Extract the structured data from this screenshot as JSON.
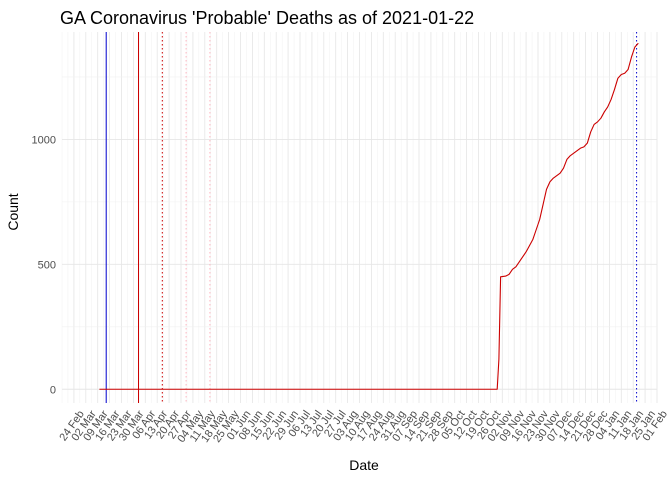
{
  "chart_data": {
    "type": "line",
    "title": "GA Coronavirus 'Probable' Deaths as of 2021-01-22",
    "xlabel": "Date",
    "ylabel": "Count",
    "xlim": [
      "2020-02-17",
      "2021-02-01"
    ],
    "ylim": [
      -55,
      1430
    ],
    "grid": true,
    "legend": "none",
    "y_ticks": [
      0,
      500,
      1000
    ],
    "x_ticks": [
      {
        "date": "2020-02-24",
        "label": "24 Feb"
      },
      {
        "date": "2020-03-02",
        "label": "02 Mar"
      },
      {
        "date": "2020-03-09",
        "label": "09 Mar"
      },
      {
        "date": "2020-03-16",
        "label": "16 Mar"
      },
      {
        "date": "2020-03-23",
        "label": "23 Mar"
      },
      {
        "date": "2020-03-30",
        "label": "30 Mar"
      },
      {
        "date": "2020-04-06",
        "label": "06 Apr"
      },
      {
        "date": "2020-04-13",
        "label": "13 Apr"
      },
      {
        "date": "2020-04-20",
        "label": "20 Apr"
      },
      {
        "date": "2020-04-27",
        "label": "27 Apr"
      },
      {
        "date": "2020-05-04",
        "label": "04 May"
      },
      {
        "date": "2020-05-11",
        "label": "11 May"
      },
      {
        "date": "2020-05-18",
        "label": "18 May"
      },
      {
        "date": "2020-05-25",
        "label": "25 May"
      },
      {
        "date": "2020-06-01",
        "label": "01 Jun"
      },
      {
        "date": "2020-06-08",
        "label": "08 Jun"
      },
      {
        "date": "2020-06-15",
        "label": "15 Jun"
      },
      {
        "date": "2020-06-22",
        "label": "22 Jun"
      },
      {
        "date": "2020-06-29",
        "label": "29 Jun"
      },
      {
        "date": "2020-07-06",
        "label": "06 Jul"
      },
      {
        "date": "2020-07-13",
        "label": "13 Jul"
      },
      {
        "date": "2020-07-20",
        "label": "20 Jul"
      },
      {
        "date": "2020-07-27",
        "label": "27 Jul"
      },
      {
        "date": "2020-08-03",
        "label": "03 Aug"
      },
      {
        "date": "2020-08-10",
        "label": "10 Aug"
      },
      {
        "date": "2020-08-17",
        "label": "17 Aug"
      },
      {
        "date": "2020-08-24",
        "label": "24 Aug"
      },
      {
        "date": "2020-08-31",
        "label": "31 Aug"
      },
      {
        "date": "2020-09-07",
        "label": "07 Sep"
      },
      {
        "date": "2020-09-14",
        "label": "14 Sep"
      },
      {
        "date": "2020-09-21",
        "label": "21 Sep"
      },
      {
        "date": "2020-09-28",
        "label": "28 Sep"
      },
      {
        "date": "2020-10-05",
        "label": "05 Oct"
      },
      {
        "date": "2020-10-12",
        "label": "12 Oct"
      },
      {
        "date": "2020-10-19",
        "label": "19 Oct"
      },
      {
        "date": "2020-10-26",
        "label": "26 Oct"
      },
      {
        "date": "2020-11-02",
        "label": "02 Nov"
      },
      {
        "date": "2020-11-09",
        "label": "09 Nov"
      },
      {
        "date": "2020-11-16",
        "label": "16 Nov"
      },
      {
        "date": "2020-11-23",
        "label": "23 Nov"
      },
      {
        "date": "2020-11-30",
        "label": "30 Nov"
      },
      {
        "date": "2020-12-07",
        "label": "07 Dec"
      },
      {
        "date": "2020-12-14",
        "label": "14 Dec"
      },
      {
        "date": "2020-12-21",
        "label": "21 Dec"
      },
      {
        "date": "2020-12-28",
        "label": "28 Dec"
      },
      {
        "date": "2021-01-04",
        "label": "04 Jan"
      },
      {
        "date": "2021-01-11",
        "label": "11 Jan"
      },
      {
        "date": "2021-01-18",
        "label": "18 Jan"
      },
      {
        "date": "2021-01-25",
        "label": "25 Jan"
      },
      {
        "date": "2021-02-01",
        "label": "01 Feb"
      }
    ],
    "vlines": [
      {
        "date": "2020-03-14",
        "color": "#0000cc",
        "style": "solid"
      },
      {
        "date": "2020-04-02",
        "color": "#cc0000",
        "style": "solid"
      },
      {
        "date": "2020-04-16",
        "color": "#cc0000",
        "style": "dotted"
      },
      {
        "date": "2020-04-30",
        "color": "#ffb6c1",
        "style": "dotted"
      },
      {
        "date": "2020-05-14",
        "color": "#ffb6c1",
        "style": "dotted"
      },
      {
        "date": "2021-01-20",
        "color": "#0000cc",
        "style": "dotted"
      }
    ],
    "series": [
      {
        "color": "#cc0000",
        "points": [
          [
            "2020-03-10",
            0
          ],
          [
            "2020-10-30",
            0
          ],
          [
            "2020-10-31",
            120
          ],
          [
            "2020-11-01",
            450
          ],
          [
            "2020-11-04",
            453
          ],
          [
            "2020-11-06",
            460
          ],
          [
            "2020-11-08",
            480
          ],
          [
            "2020-11-10",
            490
          ],
          [
            "2020-11-12",
            510
          ],
          [
            "2020-11-14",
            530
          ],
          [
            "2020-11-16",
            550
          ],
          [
            "2020-11-18",
            575
          ],
          [
            "2020-11-20",
            600
          ],
          [
            "2020-11-22",
            640
          ],
          [
            "2020-11-24",
            680
          ],
          [
            "2020-11-26",
            740
          ],
          [
            "2020-11-28",
            800
          ],
          [
            "2020-11-30",
            830
          ],
          [
            "2020-12-02",
            845
          ],
          [
            "2020-12-04",
            855
          ],
          [
            "2020-12-06",
            865
          ],
          [
            "2020-12-08",
            885
          ],
          [
            "2020-12-10",
            920
          ],
          [
            "2020-12-12",
            935
          ],
          [
            "2020-12-14",
            945
          ],
          [
            "2020-12-16",
            955
          ],
          [
            "2020-12-18",
            965
          ],
          [
            "2020-12-20",
            970
          ],
          [
            "2020-12-22",
            985
          ],
          [
            "2020-12-24",
            1030
          ],
          [
            "2020-12-26",
            1060
          ],
          [
            "2020-12-28",
            1070
          ],
          [
            "2020-12-30",
            1085
          ],
          [
            "2021-01-01",
            1110
          ],
          [
            "2021-01-03",
            1130
          ],
          [
            "2021-01-05",
            1160
          ],
          [
            "2021-01-07",
            1200
          ],
          [
            "2021-01-09",
            1245
          ],
          [
            "2021-01-11",
            1260
          ],
          [
            "2021-01-13",
            1265
          ],
          [
            "2021-01-15",
            1280
          ],
          [
            "2021-01-17",
            1330
          ],
          [
            "2021-01-19",
            1370
          ],
          [
            "2021-01-21",
            1385
          ]
        ]
      }
    ]
  }
}
